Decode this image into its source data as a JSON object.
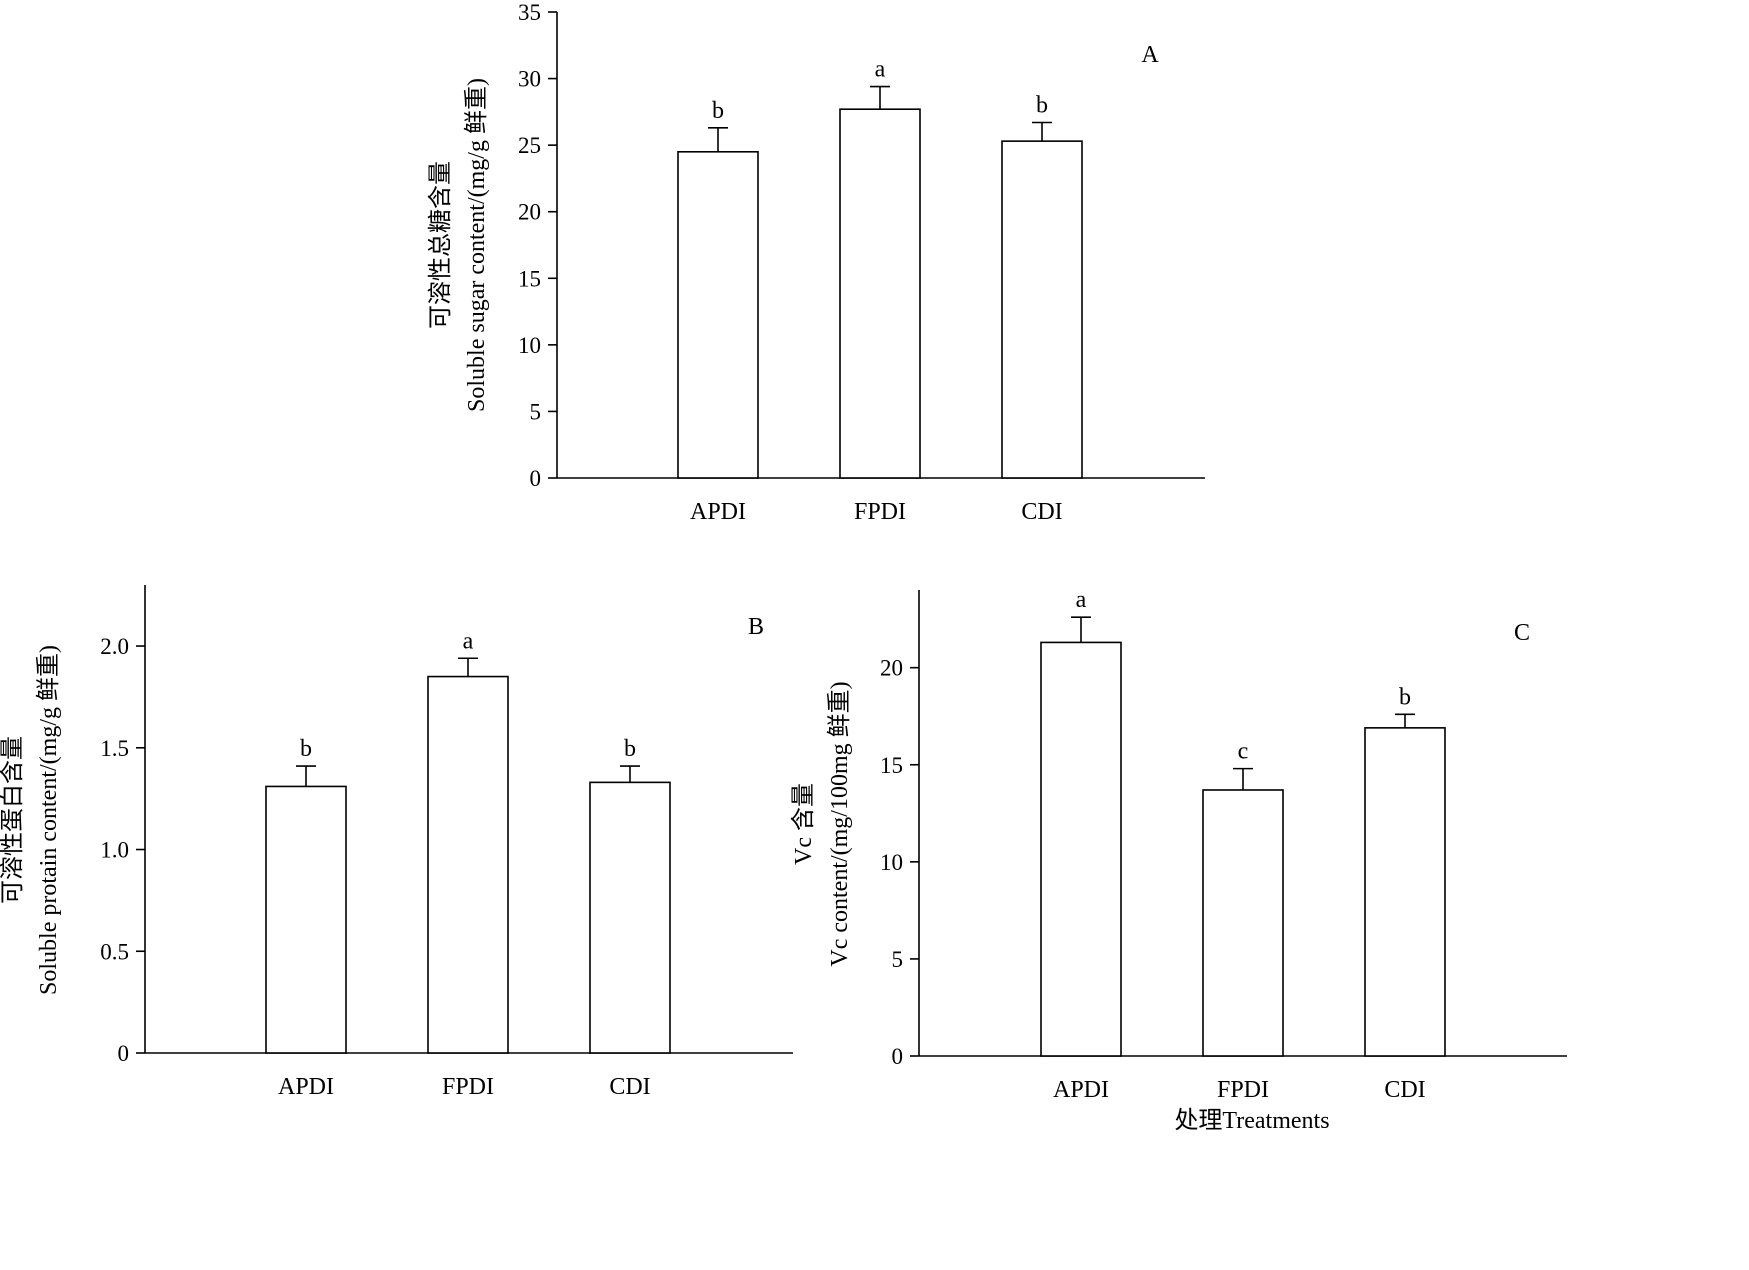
{
  "chart_data": [
    {
      "type": "bar",
      "panel_label": "A",
      "ylabel": [
        "可溶性总糖含量",
        "Soluble sugar content/(mg/g 鲜重)"
      ],
      "xlabel": "",
      "categories": [
        "APDI",
        "FPDI",
        "CDI"
      ],
      "values": [
        24.5,
        27.7,
        25.3
      ],
      "errors": [
        1.8,
        1.7,
        1.4
      ],
      "significance": [
        "b",
        "a",
        "b"
      ],
      "ylim": [
        0,
        35
      ],
      "yticks": [
        0,
        5,
        10,
        15,
        20,
        25,
        30,
        35
      ],
      "ytick_labels": [
        "0",
        "5",
        "10",
        "15",
        "20",
        "25",
        "30",
        "35"
      ],
      "grid": false,
      "bar_fill": "#ffffff",
      "bar_stroke": "#000000"
    },
    {
      "type": "bar",
      "panel_label": "B",
      "ylabel": [
        "可溶性蛋白含量",
        "Soluble protain content/(mg/g 鲜重)"
      ],
      "xlabel": "",
      "categories": [
        "APDI",
        "FPDI",
        "CDI"
      ],
      "values": [
        1.31,
        1.85,
        1.33
      ],
      "errors": [
        0.1,
        0.09,
        0.08
      ],
      "significance": [
        "b",
        "a",
        "b"
      ],
      "ylim": [
        0,
        2.3
      ],
      "yticks": [
        0,
        0.5,
        1.0,
        1.5,
        2.0
      ],
      "ytick_labels": [
        "0",
        "0.5",
        "1.0",
        "1.5",
        "2.0"
      ],
      "grid": false,
      "bar_fill": "#ffffff",
      "bar_stroke": "#000000"
    },
    {
      "type": "bar",
      "panel_label": "C",
      "ylabel": [
        "Vc 含量",
        "Vc content/(mg/100mg 鲜重)"
      ],
      "xlabel": "处理Treatments",
      "categories": [
        "APDI",
        "FPDI",
        "CDI"
      ],
      "values": [
        21.3,
        13.7,
        16.9
      ],
      "errors": [
        1.3,
        1.1,
        0.7
      ],
      "significance": [
        "a",
        "c",
        "b"
      ],
      "ylim": [
        0,
        24
      ],
      "yticks": [
        0,
        5,
        10,
        15,
        20
      ],
      "ytick_labels": [
        "0",
        "5",
        "10",
        "15",
        "20"
      ],
      "grid": false,
      "bar_fill": "#ffffff",
      "bar_stroke": "#000000"
    }
  ]
}
